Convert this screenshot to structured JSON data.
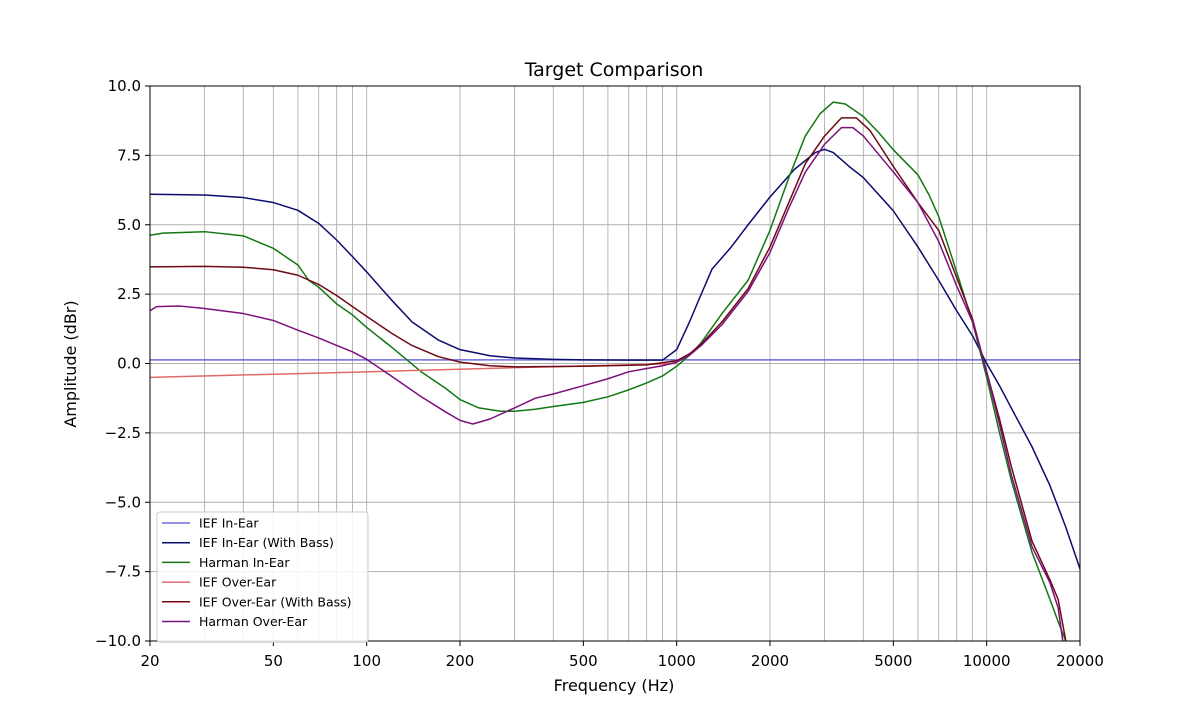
{
  "chart_data": {
    "type": "line",
    "title": "Target Comparison",
    "xlabel": "Frequency (Hz)",
    "ylabel": "Amplitude (dBr)",
    "x_scale": "log",
    "xlim": [
      20,
      20000
    ],
    "ylim": [
      -10,
      10
    ],
    "grid": true,
    "legend_position": "lower-left",
    "x_ticks": [
      20,
      50,
      100,
      200,
      500,
      1000,
      2000,
      5000,
      10000,
      20000
    ],
    "x_tick_labels": [
      "20",
      "50",
      "100",
      "200",
      "500",
      "1000",
      "2000",
      "5000",
      "10000",
      "20000"
    ],
    "y_ticks": [
      -10,
      -7.5,
      -5,
      -2.5,
      0,
      2.5,
      5,
      7.5,
      10
    ],
    "y_tick_labels": [
      "−10.0",
      "−7.5",
      "−5.0",
      "−2.5",
      "0.0",
      "2.5",
      "5.0",
      "7.5",
      "10.0"
    ],
    "series": [
      {
        "name": "IEF In-Ear",
        "color": "#6b6bdc",
        "points": [
          [
            20,
            0.13
          ],
          [
            100,
            0.13
          ],
          [
            1000,
            0.13
          ],
          [
            10000,
            0.13
          ],
          [
            20000,
            0.13
          ]
        ]
      },
      {
        "name": "IEF In-Ear (With Bass)",
        "color": "#0c0c6e",
        "points": [
          [
            20,
            6.1
          ],
          [
            30,
            6.07
          ],
          [
            40,
            5.98
          ],
          [
            50,
            5.8
          ],
          [
            60,
            5.52
          ],
          [
            70,
            5.05
          ],
          [
            80,
            4.45
          ],
          [
            90,
            3.85
          ],
          [
            100,
            3.3
          ],
          [
            120,
            2.3
          ],
          [
            140,
            1.5
          ],
          [
            170,
            0.85
          ],
          [
            200,
            0.5
          ],
          [
            250,
            0.28
          ],
          [
            300,
            0.2
          ],
          [
            400,
            0.15
          ],
          [
            500,
            0.13
          ],
          [
            700,
            0.12
          ],
          [
            900,
            0.12
          ],
          [
            1000,
            0.5
          ],
          [
            1100,
            1.5
          ],
          [
            1200,
            2.5
          ],
          [
            1300,
            3.4
          ],
          [
            1500,
            4.2
          ],
          [
            1700,
            5.0
          ],
          [
            2000,
            6.0
          ],
          [
            2400,
            7.0
          ],
          [
            2800,
            7.6
          ],
          [
            3000,
            7.72
          ],
          [
            3200,
            7.6
          ],
          [
            3600,
            7.1
          ],
          [
            4000,
            6.7
          ],
          [
            5000,
            5.5
          ],
          [
            6000,
            4.2
          ],
          [
            7000,
            3.0
          ],
          [
            8000,
            1.9
          ],
          [
            9000,
            1.0
          ],
          [
            10000,
            0.0
          ],
          [
            11000,
            -0.8
          ],
          [
            12000,
            -1.6
          ],
          [
            14000,
            -3.0
          ],
          [
            16000,
            -4.4
          ],
          [
            18000,
            -5.9
          ],
          [
            20000,
            -7.4
          ]
        ]
      },
      {
        "name": "Harman In-Ear",
        "color": "#127812",
        "points": [
          [
            20,
            4.62
          ],
          [
            22,
            4.7
          ],
          [
            30,
            4.75
          ],
          [
            40,
            4.6
          ],
          [
            50,
            4.15
          ],
          [
            60,
            3.55
          ],
          [
            65,
            3.0
          ],
          [
            70,
            2.75
          ],
          [
            80,
            2.15
          ],
          [
            90,
            1.75
          ],
          [
            100,
            1.3
          ],
          [
            120,
            0.6
          ],
          [
            150,
            -0.3
          ],
          [
            180,
            -0.9
          ],
          [
            200,
            -1.3
          ],
          [
            230,
            -1.6
          ],
          [
            270,
            -1.72
          ],
          [
            300,
            -1.72
          ],
          [
            350,
            -1.65
          ],
          [
            400,
            -1.55
          ],
          [
            500,
            -1.4
          ],
          [
            600,
            -1.2
          ],
          [
            700,
            -0.95
          ],
          [
            800,
            -0.7
          ],
          [
            900,
            -0.45
          ],
          [
            1000,
            -0.1
          ],
          [
            1100,
            0.3
          ],
          [
            1200,
            0.75
          ],
          [
            1400,
            1.8
          ],
          [
            1700,
            3.0
          ],
          [
            2000,
            4.8
          ],
          [
            2300,
            6.7
          ],
          [
            2600,
            8.2
          ],
          [
            2900,
            9.0
          ],
          [
            3200,
            9.42
          ],
          [
            3500,
            9.35
          ],
          [
            4000,
            8.9
          ],
          [
            4500,
            8.3
          ],
          [
            5000,
            7.7
          ],
          [
            6000,
            6.8
          ],
          [
            6500,
            6.1
          ],
          [
            7000,
            5.3
          ],
          [
            8000,
            3.3
          ],
          [
            9000,
            1.5
          ],
          [
            10000,
            -0.5
          ],
          [
            11000,
            -2.5
          ],
          [
            12000,
            -4.2
          ],
          [
            14000,
            -6.8
          ],
          [
            16000,
            -8.5
          ],
          [
            17000,
            -9.3
          ],
          [
            18000,
            -10.0
          ]
        ]
      },
      {
        "name": "IEF Over-Ear",
        "color": "#e06a6a",
        "points": [
          [
            20,
            -0.5
          ],
          [
            100,
            -0.3
          ],
          [
            300,
            -0.15
          ],
          [
            700,
            -0.05
          ],
          [
            1000,
            0.0
          ]
        ]
      },
      {
        "name": "IEF Over-Ear (With Bass)",
        "color": "#6e0a14",
        "points": [
          [
            20,
            3.48
          ],
          [
            30,
            3.5
          ],
          [
            40,
            3.47
          ],
          [
            50,
            3.38
          ],
          [
            60,
            3.18
          ],
          [
            70,
            2.85
          ],
          [
            80,
            2.45
          ],
          [
            90,
            2.05
          ],
          [
            100,
            1.7
          ],
          [
            120,
            1.1
          ],
          [
            140,
            0.65
          ],
          [
            170,
            0.25
          ],
          [
            200,
            0.05
          ],
          [
            250,
            -0.08
          ],
          [
            300,
            -0.12
          ],
          [
            500,
            -0.1
          ],
          [
            800,
            -0.05
          ],
          [
            1000,
            0.1
          ],
          [
            1100,
            0.35
          ],
          [
            1200,
            0.7
          ],
          [
            1400,
            1.5
          ],
          [
            1700,
            2.7
          ],
          [
            2000,
            4.2
          ],
          [
            2300,
            5.8
          ],
          [
            2600,
            7.2
          ],
          [
            3000,
            8.2
          ],
          [
            3400,
            8.85
          ],
          [
            3800,
            8.85
          ],
          [
            4200,
            8.4
          ],
          [
            5000,
            7.1
          ],
          [
            6000,
            5.8
          ],
          [
            7000,
            4.8
          ],
          [
            8000,
            3.1
          ],
          [
            9000,
            1.6
          ],
          [
            10000,
            -0.3
          ],
          [
            11000,
            -2.0
          ],
          [
            12000,
            -3.7
          ],
          [
            14000,
            -6.4
          ],
          [
            16000,
            -7.8
          ],
          [
            17000,
            -8.5
          ],
          [
            18000,
            -10.0
          ]
        ]
      },
      {
        "name": "Harman Over-Ear",
        "color": "#7d107d",
        "points": [
          [
            20,
            1.9
          ],
          [
            21,
            2.05
          ],
          [
            25,
            2.07
          ],
          [
            30,
            1.98
          ],
          [
            40,
            1.8
          ],
          [
            50,
            1.55
          ],
          [
            60,
            1.2
          ],
          [
            70,
            0.92
          ],
          [
            80,
            0.65
          ],
          [
            90,
            0.42
          ],
          [
            100,
            0.15
          ],
          [
            120,
            -0.45
          ],
          [
            150,
            -1.2
          ],
          [
            180,
            -1.75
          ],
          [
            200,
            -2.05
          ],
          [
            220,
            -2.18
          ],
          [
            250,
            -2.0
          ],
          [
            300,
            -1.6
          ],
          [
            350,
            -1.25
          ],
          [
            400,
            -1.1
          ],
          [
            500,
            -0.8
          ],
          [
            600,
            -0.55
          ],
          [
            700,
            -0.3
          ],
          [
            800,
            -0.18
          ],
          [
            900,
            -0.08
          ],
          [
            1000,
            0.05
          ],
          [
            1100,
            0.3
          ],
          [
            1200,
            0.65
          ],
          [
            1400,
            1.4
          ],
          [
            1700,
            2.6
          ],
          [
            2000,
            4.0
          ],
          [
            2300,
            5.6
          ],
          [
            2600,
            6.9
          ],
          [
            3000,
            7.9
          ],
          [
            3400,
            8.5
          ],
          [
            3700,
            8.5
          ],
          [
            4000,
            8.2
          ],
          [
            5000,
            6.9
          ],
          [
            6000,
            5.8
          ],
          [
            7000,
            4.4
          ],
          [
            8000,
            2.8
          ],
          [
            9000,
            1.5
          ],
          [
            10000,
            -0.3
          ],
          [
            11000,
            -2.2
          ],
          [
            12000,
            -4.0
          ],
          [
            14000,
            -6.6
          ],
          [
            16000,
            -7.9
          ],
          [
            17000,
            -8.8
          ],
          [
            17600,
            -10.0
          ]
        ]
      }
    ]
  }
}
